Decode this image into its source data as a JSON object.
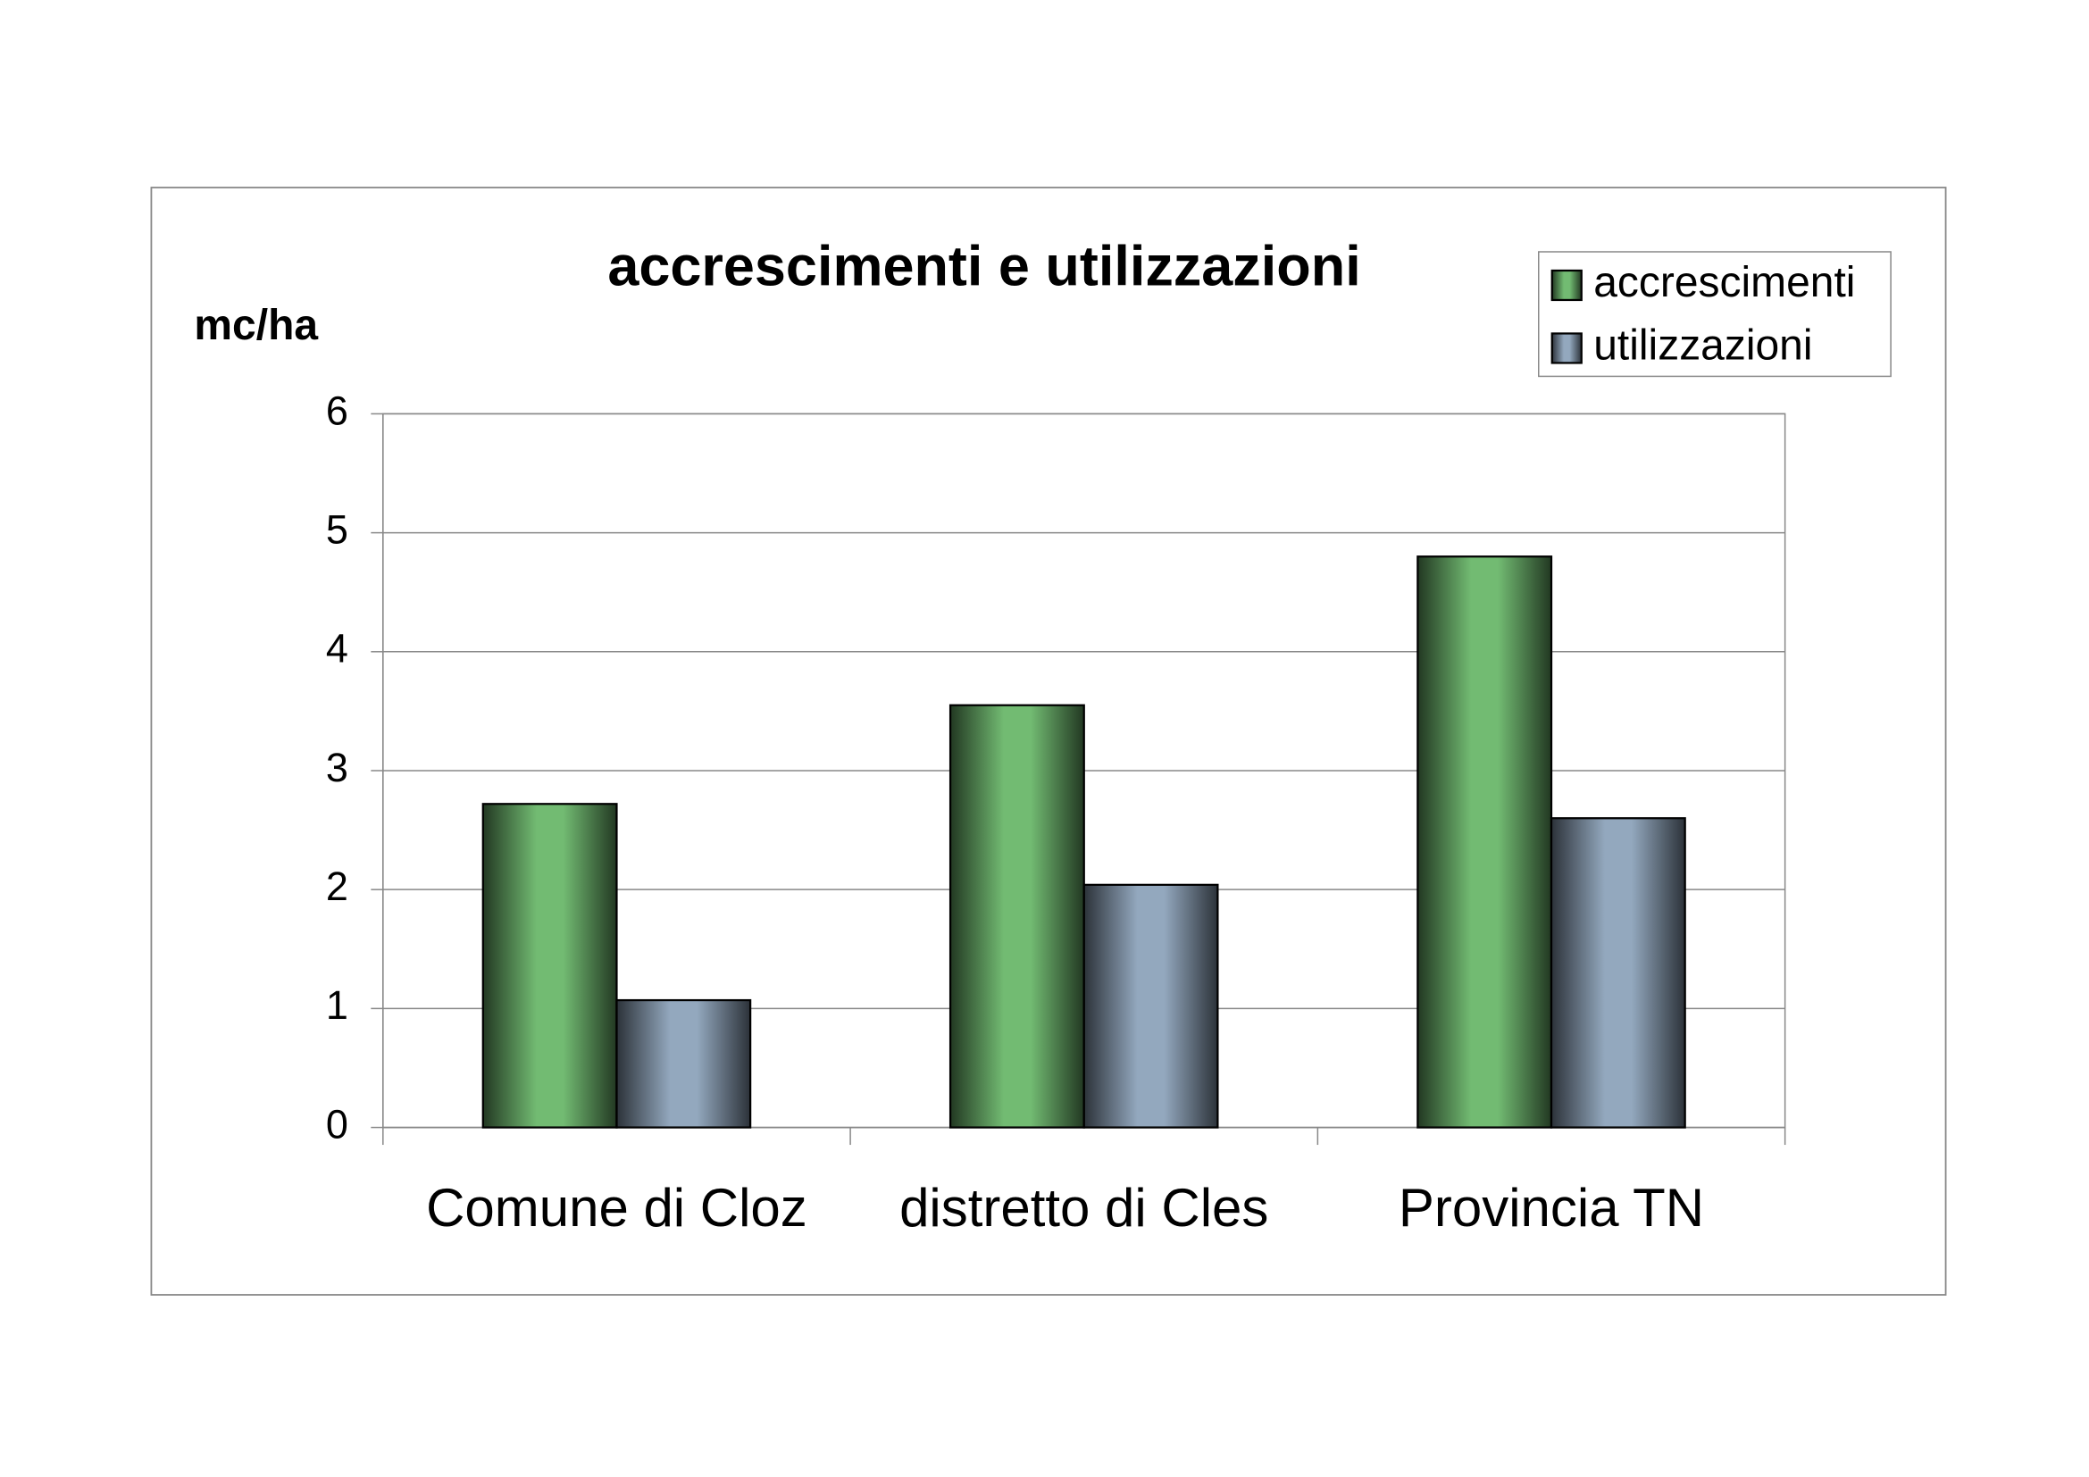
{
  "chart_data": {
    "type": "bar",
    "title": "accrescimenti e utilizzazioni",
    "y_label": "mc/ha",
    "categories": [
      "Comune di Cloz",
      "distretto di Cles",
      "Provincia TN"
    ],
    "series": [
      {
        "name": "accrescimenti",
        "color": "#72bb72",
        "values": [
          2.72,
          3.55,
          4.8
        ]
      },
      {
        "name": "utilizzazioni",
        "color": "#93a8be",
        "values": [
          1.07,
          2.04,
          2.6
        ]
      }
    ],
    "ylim": [
      0,
      6
    ],
    "yticks": [
      0,
      1,
      2,
      3,
      4,
      5,
      6
    ],
    "grid": true,
    "legend": "top-right"
  }
}
